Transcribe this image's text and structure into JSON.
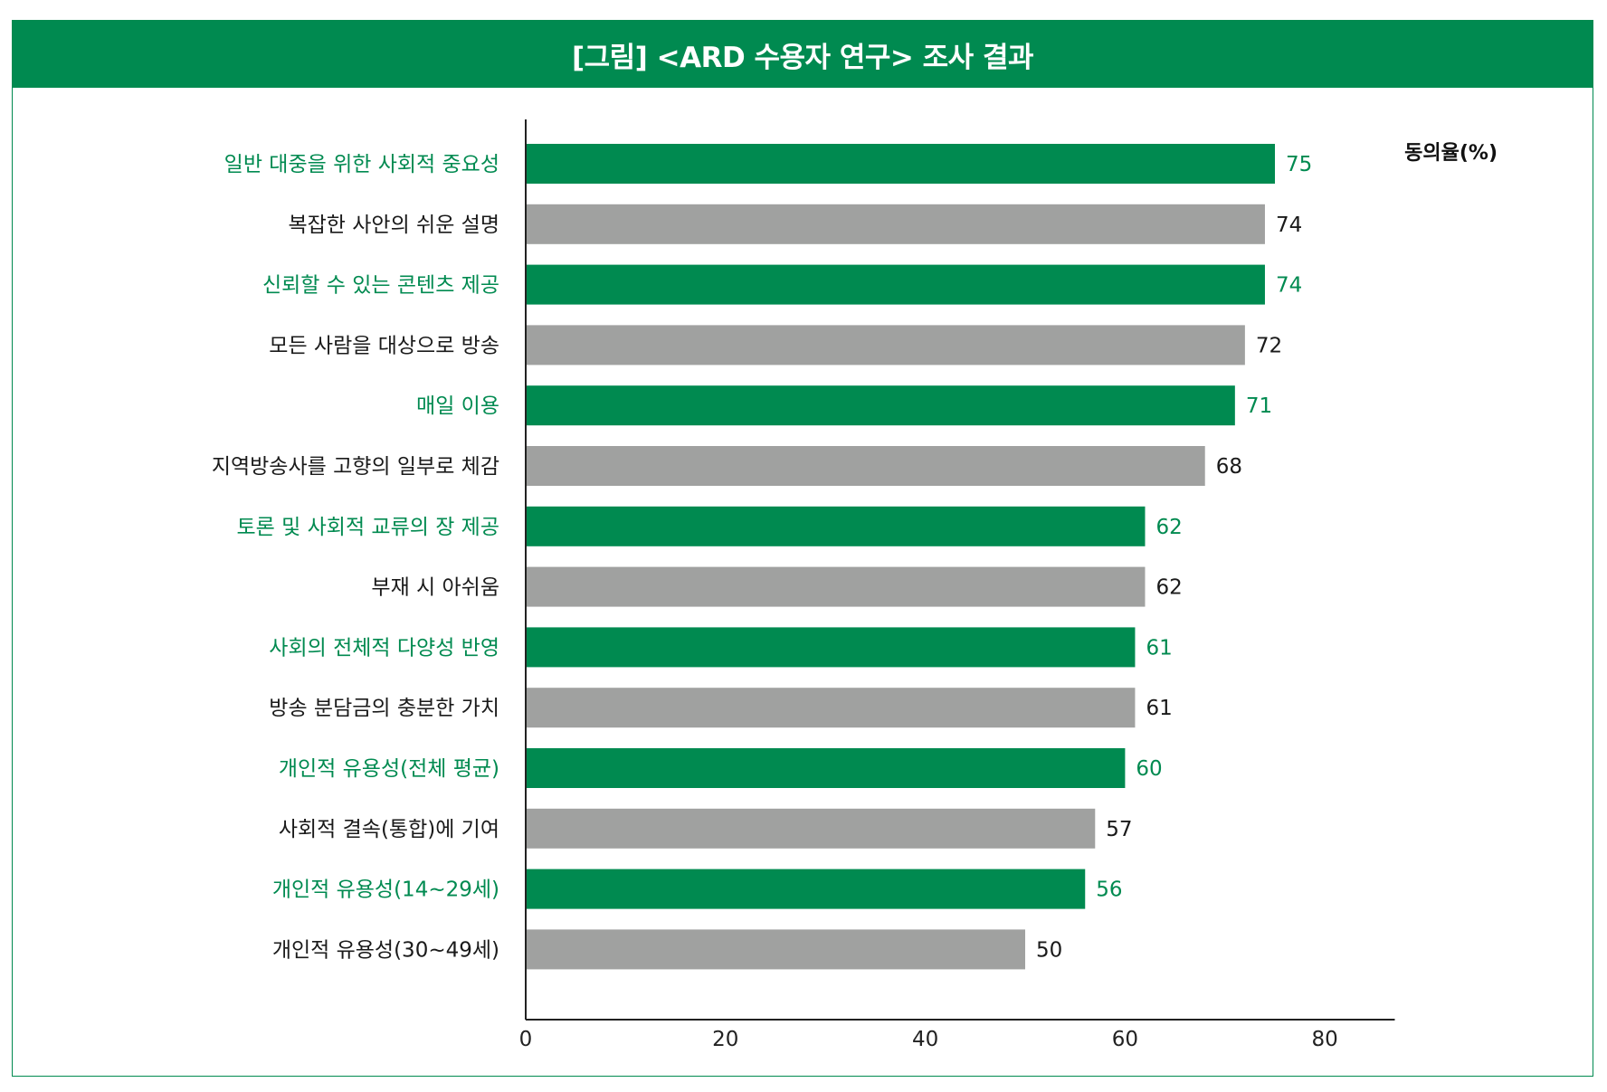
{
  "title": "[그림] <ARD 수용자 연구> 조사 결과",
  "colors": {
    "accent": "#008a50",
    "gray_bar": "#a0a1a0",
    "dark_text": "#1a1a1a"
  },
  "chart_data": {
    "type": "bar",
    "orientation": "horizontal",
    "unit_label": "동의율(%)",
    "xlim": [
      0,
      87
    ],
    "xticks": [
      0,
      20,
      40,
      60,
      80
    ],
    "grid": false,
    "categories": [
      "일반 대중을 위한 사회적 중요성",
      "복잡한 사안의 쉬운 설명",
      "신뢰할 수 있는 콘텐츠 제공",
      "모든 사람을 대상으로 방송",
      "매일 이용",
      "지역방송사를 고향의 일부로 체감",
      "토론 및 사회적 교류의 장 제공",
      "부재 시 아쉬움",
      "사회의 전체적 다양성 반영",
      "방송 분담금의 충분한 가치",
      "개인적 유용성(전체 평균)",
      "사회적 결속(통합)에 기여",
      "개인적 유용성(14~29세)",
      "개인적 유용성(30~49세)"
    ],
    "values": [
      75,
      74,
      74,
      72,
      71,
      68,
      62,
      62,
      61,
      61,
      60,
      57,
      56,
      50
    ],
    "bar_colors": [
      "green",
      "gray",
      "green",
      "gray",
      "green",
      "gray",
      "green",
      "gray",
      "green",
      "gray",
      "green",
      "gray",
      "green",
      "gray"
    ]
  }
}
